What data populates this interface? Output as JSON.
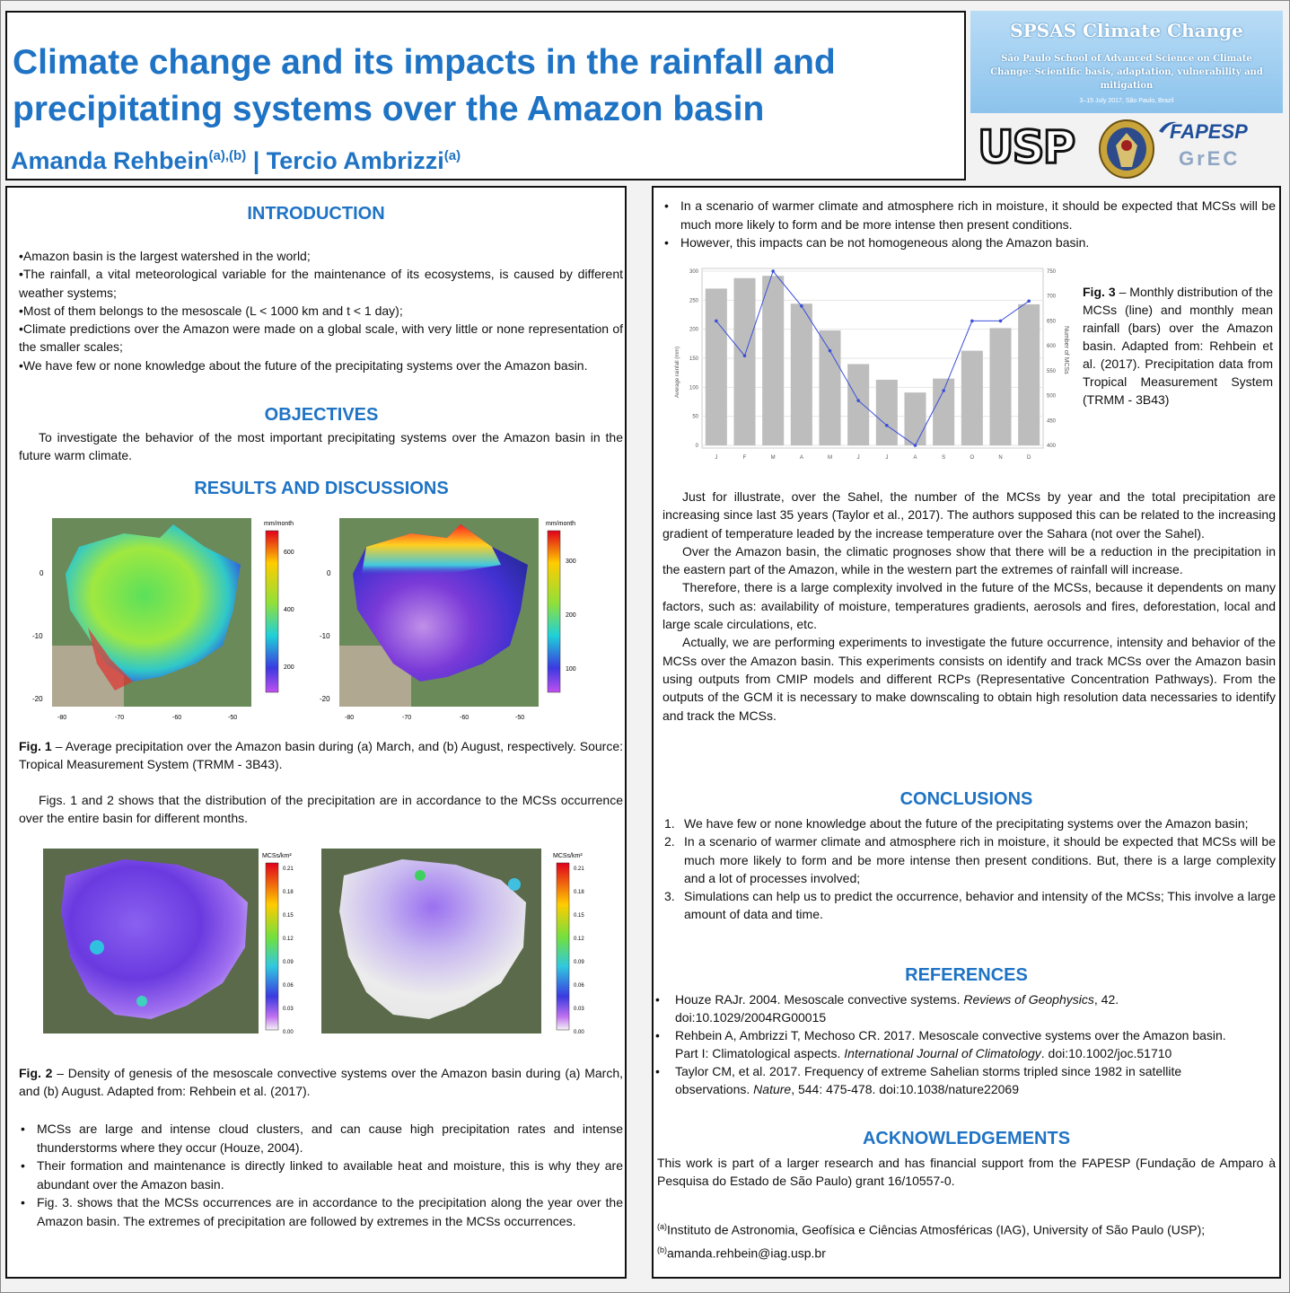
{
  "header": {
    "title": "Climate change and its impacts in the rainfall and precipitating systems over the Amazon basin",
    "author1": "Amanda Rehbein",
    "author1_sup": "(a),(b)",
    "separator": " | ",
    "author2": "Tercio Ambrizzi",
    "author2_sup": "(a)"
  },
  "banner": {
    "title": "SPSAS Climate Change",
    "subtitle": "São Paulo School of Advanced Science on Climate Change: Scientific basis, adaptation, vulnerability and mitigation",
    "date": "3–15 July 2017, São Paulo, Brazil"
  },
  "logos": {
    "usp": "USP",
    "fapesp": "FAPESP",
    "grec": "GrEC"
  },
  "introduction": {
    "heading": "INTRODUCTION",
    "items": [
      "•Amazon basin is the largest watershed in the world;",
      "•The rainfall, a vital meteorological variable for the maintenance of its ecosystems, is caused by different weather systems;",
      "•Most of them belongs to the mesoscale (L < 1000 km and t < 1 day);",
      "•Climate predictions over the Amazon were made on a global scale, with very little or none representation of the smaller scales;",
      "•We have few or none knowledge about the future of the precipitating systems over the Amazon basin."
    ]
  },
  "objectives": {
    "heading": "OBJECTIVES",
    "text": "To investigate the behavior of the most important precipitating systems over the Amazon basin in the future warm climate."
  },
  "results": {
    "heading": "RESULTS AND DISCUSSIONS",
    "fig1": {
      "unit": "mm/month",
      "a_ticks": [
        "600",
        "400",
        "200"
      ],
      "b_ticks": [
        "300",
        "200",
        "100"
      ],
      "lat_ticks": [
        "0",
        "-10",
        "-20"
      ],
      "lon_ticks": [
        "-80",
        "-70",
        "-60",
        "-50"
      ],
      "caption_label": "Fig. 1",
      "caption": " – Average precipitation over the Amazon basin during (a) March, and (b) August, respectively. Source: Tropical Measurement System (TRMM - 3B43)."
    },
    "para1": "Figs. 1 and 2 shows that the distribution of the precipitation are in accordance to the MCSs occurrence over the entire basin for different months.",
    "fig2": {
      "unit": "MCSs/km²",
      "ticks": [
        "0.21",
        "0.18",
        "0.15",
        "0.12",
        "0.09",
        "0.06",
        "0.03",
        "0.00"
      ],
      "caption_label": "Fig. 2",
      "caption": " – Density of genesis of the mesoscale convective systems over the Amazon basin during (a) March, and (b) August. Adapted from: Rehbein et al. (2017)."
    },
    "bullets": [
      "MCSs are large and intense cloud clusters, and can cause high precipitation rates and intense thunderstorms where they occur (Houze, 2004).",
      "Their formation and maintenance is directly linked to available heat and moisture, this is why they are abundant over the Amazon basin.",
      "Fig. 3. shows that the MCSs occurrences are in accordance to the precipitation along the year over the Amazon basin. The extremes of precipitation are followed by extremes in the MCSs occurrences."
    ]
  },
  "right": {
    "bullets": [
      "In a scenario of warmer climate and atmosphere rich in moisture, it should be expected that MCSs will be much more likely to form and be more intense then present conditions.",
      "However, this impacts can be not homogeneous along the Amazon basin."
    ],
    "fig3_caption_label": "Fig. 3",
    "fig3_caption": " – Monthly distribution of the MCSs (line) and monthly mean rainfall (bars) over the Amazon basin. Adapted from: Rehbein et al. (2017). Precipitation data from Tropical Measurement System (TRMM - 3B43)",
    "paragraphs": [
      "Just for illustrate, over the Sahel, the number of the MCSs by year and the total precipitation are increasing since last 35 years (Taylor et al., 2017). The authors supposed this can be related to the increasing gradient of temperature leaded by the increase temperature over the Sahara (not over the Sahel).",
      "Over the Amazon basin, the climatic prognoses show that there will be a reduction in the precipitation in the eastern part of the Amazon, while in the western part the extremes of rainfall will increase.",
      "Therefore, there is a large complexity involved in the future of the MCSs, because it dependents on many factors, such as: availability of moisture, temperatures gradients, aerosols and fires, deforestation, local and large scale circulations, etc.",
      "Actually, we are performing experiments to investigate the future occurrence, intensity and behavior of the MCSs over the Amazon basin. This experiments consists on identify and track MCSs over the Amazon basin using outputs from CMIP models and different RCPs (Representative Concentration Pathways). From the outputs of the GCM it is necessary to make downscaling to obtain high resolution data necessaries to identify and track the MCSs."
    ]
  },
  "conclusions": {
    "heading": "CONCLUSIONS",
    "items": [
      {
        "n": "1.",
        "text": "We have few or none knowledge about the future of the precipitating systems over the Amazon basin;"
      },
      {
        "n": "2.",
        "text": "In a scenario of warmer climate and atmosphere rich in moisture, it should be expected that MCSs will be much more likely to form and be more intense then present conditions. But, there is a large complexity and a lot of processes involved;"
      },
      {
        "n": "3.",
        "text": "Simulations can help us to predict the occurrence, behavior and intensity of the MCSs; This involve a large amount of data and time."
      }
    ]
  },
  "references": {
    "heading": "REFERENCES",
    "items": [
      {
        "pre": "Houze RAJr. 2004. Mesoscale convective systems. ",
        "journal": "Reviews of Geophysics",
        "post": ", 42. doi:10.1029/2004RG00015"
      },
      {
        "pre": "Rehbein A, Ambrizzi T, Mechoso CR. 2017. Mesoscale convective systems over the Amazon basin. Part I: Climatological aspects. ",
        "journal": "International Journal of Climatology",
        "post": ". doi:10.1002/joc.51710"
      },
      {
        "pre": "Taylor CM, et al. 2017. Frequency of extreme Sahelian storms tripled since 1982 in satellite observations. ",
        "journal": "Nature",
        "post": ", 544: 475-478. doi:10.1038/nature22069"
      }
    ]
  },
  "acknowledgements": {
    "heading": "ACKNOWLEDGEMENTS",
    "text": "This work is part of a larger research and has financial support from the FAPESP (Fundação de Amparo à Pesquisa do Estado de São Paulo) grant 16/10557-0."
  },
  "footnote": {
    "a_sup": "(a)",
    "a_text": "Instituto de Astronomia, Geofísica e Ciências Atmosféricas (IAG), University of São Paulo (USP); ",
    "b_sup": "(b)",
    "b_text": "amanda.rehbein@iag.usp.br"
  },
  "chart_data": {
    "type": "bar",
    "title": "",
    "categories": [
      "J",
      "F",
      "M",
      "A",
      "M",
      "J",
      "J",
      "A",
      "S",
      "O",
      "N",
      "D"
    ],
    "ylabel": "Average rainfall (mm)",
    "y2label": "Number of MCSs",
    "ylim": [
      0,
      300
    ],
    "y2lim": [
      400,
      750
    ],
    "yticks": [
      "0",
      "50",
      "100",
      "150",
      "200",
      "250",
      "300"
    ],
    "y2ticks": [
      "400",
      "450",
      "500",
      "550",
      "600",
      "650",
      "700",
      "750"
    ],
    "series": [
      {
        "type": "bar",
        "axis": "left",
        "values": [
          270,
          288,
          292,
          244,
          198,
          140,
          113,
          91,
          115,
          163,
          202,
          243
        ]
      },
      {
        "type": "line",
        "axis": "right",
        "values": [
          650,
          580,
          750,
          680,
          590,
          490,
          440,
          400,
          510,
          650,
          650,
          690
        ]
      }
    ],
    "grid": true,
    "colors": {
      "bars": "#bdbdbd",
      "line": "#3a4fd8"
    }
  }
}
